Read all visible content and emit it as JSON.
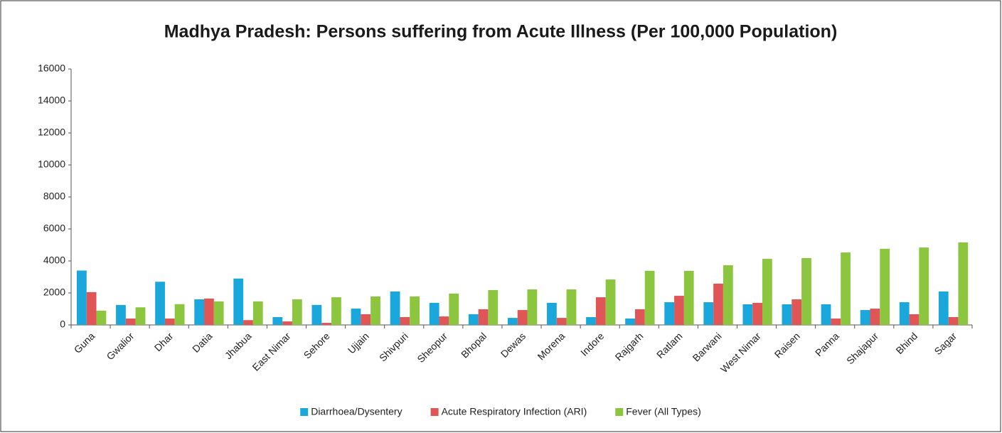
{
  "chart_data": {
    "type": "bar",
    "title": "Madhya Pradesh: Persons suffering from Acute Illness (Per 100,000 Population)",
    "categories": [
      "Guna",
      "Gwalior",
      "Dhar",
      "Datia",
      "Jhabua",
      "East Nimar",
      "Sehore",
      "Ujjain",
      "Shivpuri",
      "Sheopur",
      "Bhopal",
      "Dewas",
      "Morena",
      "Indore",
      "Rajgarh",
      "Ratlam",
      "Barwani",
      "West Nimar",
      "Raisen",
      "Panna",
      "Shajapur",
      "Bhind",
      "Sagar"
    ],
    "series": [
      {
        "name": "Diarrhoea/Dysentery",
        "color": "#1aa7dc",
        "values": [
          3400,
          1250,
          2700,
          1600,
          2900,
          490,
          1250,
          1020,
          2090,
          1380,
          670,
          440,
          1380,
          490,
          400,
          1420,
          1420,
          1290,
          1290,
          1290,
          930,
          1420,
          2090
        ]
      },
      {
        "name": "Acute Respiratory Infection (ARI)",
        "color": "#e05656",
        "values": [
          2050,
          400,
          400,
          1650,
          300,
          220,
          130,
          670,
          490,
          530,
          980,
          930,
          440,
          1730,
          980,
          1820,
          2580,
          1380,
          1600,
          400,
          1020,
          670,
          490
        ]
      },
      {
        "name": "Fever (All Types)",
        "color": "#8cc63f",
        "values": [
          890,
          1100,
          1300,
          1470,
          1470,
          1600,
          1730,
          1780,
          1780,
          1960,
          2180,
          2220,
          2220,
          2840,
          3380,
          3380,
          3730,
          4130,
          4180,
          4530,
          4760,
          4840,
          5160
        ]
      }
    ],
    "ylim": [
      0,
      16000
    ],
    "yticks": [
      0,
      2000,
      4000,
      6000,
      8000,
      10000,
      12000,
      14000,
      16000
    ],
    "grid": false,
    "legend": "bottom"
  }
}
